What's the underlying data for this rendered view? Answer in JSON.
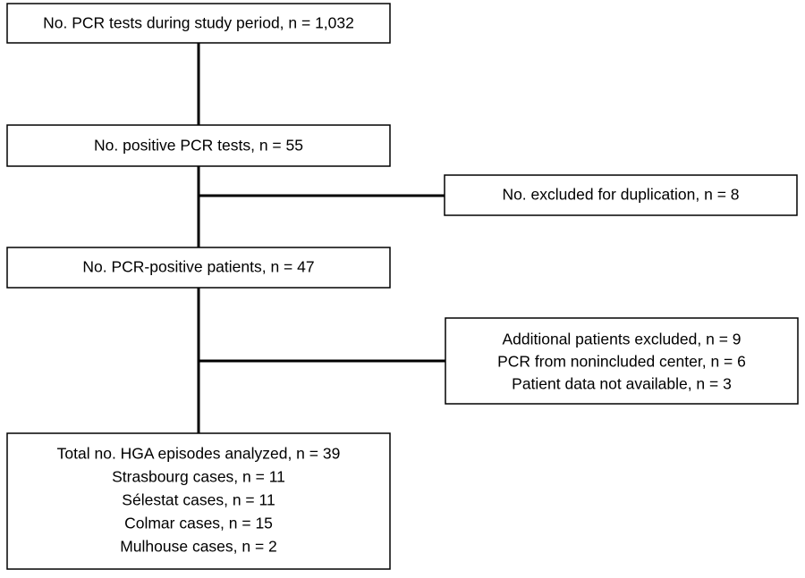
{
  "nodes": [
    {
      "lines": [
        "No. PCR tests during study period, n = 1,032"
      ]
    },
    {
      "lines": [
        "No. positive PCR tests, n = 55"
      ]
    },
    {
      "lines": [
        "No. excluded for duplication, n = 8"
      ]
    },
    {
      "lines": [
        "No. PCR-positive patients, n = 47"
      ]
    },
    {
      "lines": [
        "Additional patients excluded, n = 9",
        "PCR from nonincluded center, n = 6",
        "Patient data not available, n = 3"
      ]
    },
    {
      "lines": [
        "Total no. HGA episodes analyzed, n = 39",
        "Strasbourg cases, n = 11",
        "Sélestat cases, n = 11",
        "Colmar cases, n = 15",
        "Mulhouse cases, n = 2"
      ]
    }
  ]
}
